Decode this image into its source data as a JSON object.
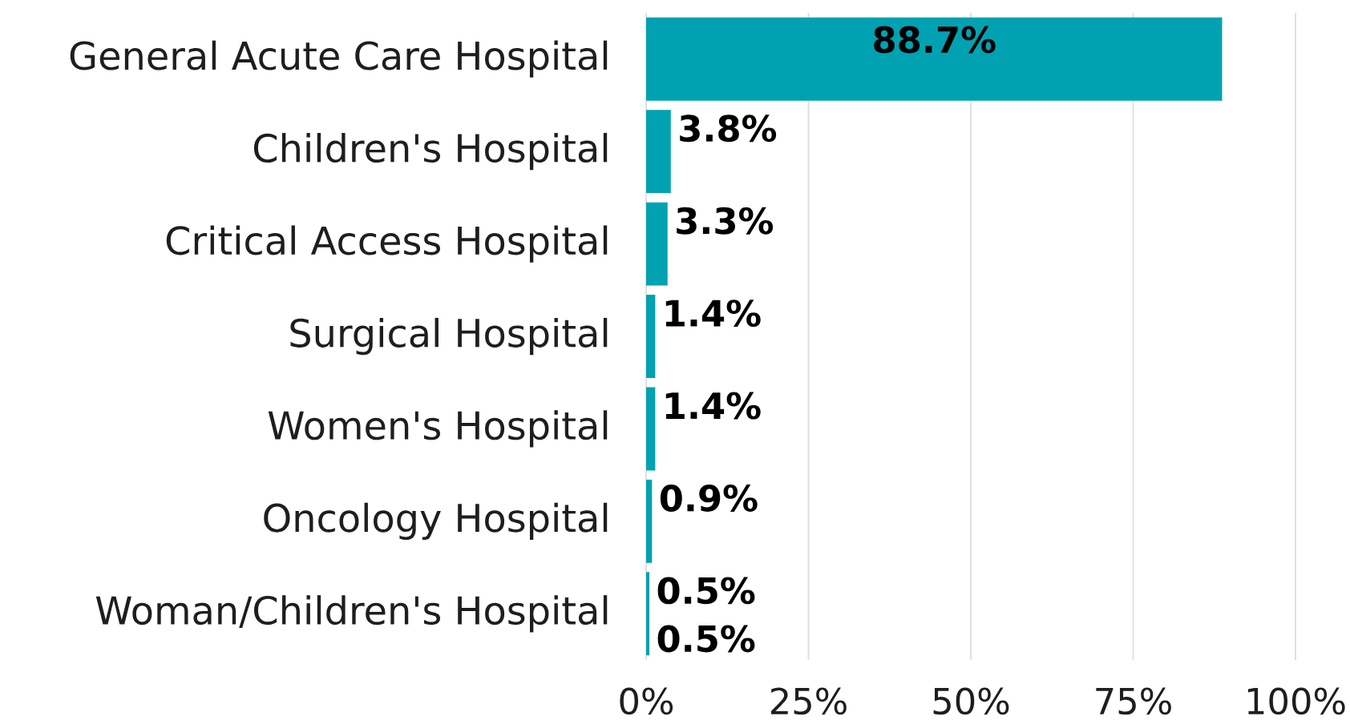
{
  "chart_data": {
    "type": "bar",
    "orientation": "horizontal",
    "categories": [
      "General Acute Care  Hospital",
      "Children's Hospital",
      "Critical Access Hospital",
      "Surgical Hospital",
      "Women's Hospital",
      "Oncology Hospital",
      "Woman/Children's Hospital"
    ],
    "values": [
      88.7,
      3.8,
      3.3,
      1.4,
      1.4,
      0.9,
      0.5
    ],
    "color": "#00a2b2",
    "xlim": [
      0,
      100
    ],
    "xticks": [
      {
        "value": 0,
        "label": "0%"
      },
      {
        "value": 25,
        "label": "25%"
      },
      {
        "value": 50,
        "label": "50%"
      },
      {
        "value": 75,
        "label": "75%"
      },
      {
        "value": 100,
        "label": "100%"
      }
    ],
    "grid": "x",
    "value_labels": [
      "88.7%",
      "3.8%",
      "3.3%",
      "1.4%",
      "1.4%",
      "0.9%",
      "0.5%"
    ],
    "annotations": [
      "0.5%"
    ]
  }
}
